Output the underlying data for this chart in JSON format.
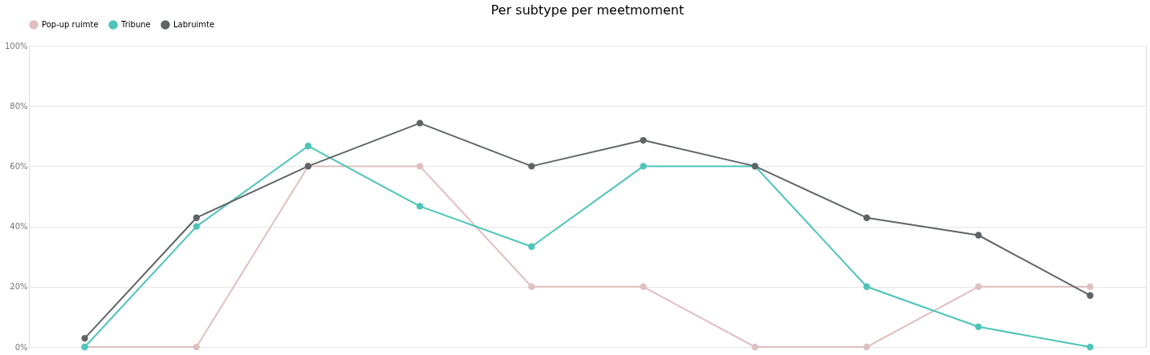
{
  "chart_data": {
    "type": "line",
    "title": "Per subtype per meetmoment",
    "categories": [
      null,
      null,
      null,
      null,
      null,
      null,
      null,
      null,
      null,
      null
    ],
    "series": [
      {
        "name": "Pop-up ruimte",
        "color": "#dfc0c0",
        "values": [
          0,
          0,
          60,
          60,
          20,
          20,
          0,
          0,
          20,
          20
        ]
      },
      {
        "name": "Tribune",
        "color": "#4cc4b8",
        "values": [
          0,
          40,
          66.7,
          46.7,
          33.3,
          60,
          60,
          20,
          6.7,
          0
        ]
      },
      {
        "name": "Labruimte",
        "color": "#606466",
        "values": [
          2.9,
          42.9,
          60,
          74.3,
          60,
          68.6,
          60,
          42.9,
          37.1,
          17.1
        ]
      }
    ],
    "ylim": [
      0,
      100
    ],
    "yticks": [
      {
        "value": 0,
        "label": "0%"
      },
      {
        "value": 20,
        "label": "20%"
      },
      {
        "value": 40,
        "label": "40%"
      },
      {
        "value": 60,
        "label": "60%"
      },
      {
        "value": 80,
        "label": "80%"
      },
      {
        "value": 100,
        "label": "100%"
      }
    ],
    "grid": "y",
    "legend": "top",
    "marker": "circle",
    "line_style": "solid",
    "tick_labels": "y"
  }
}
